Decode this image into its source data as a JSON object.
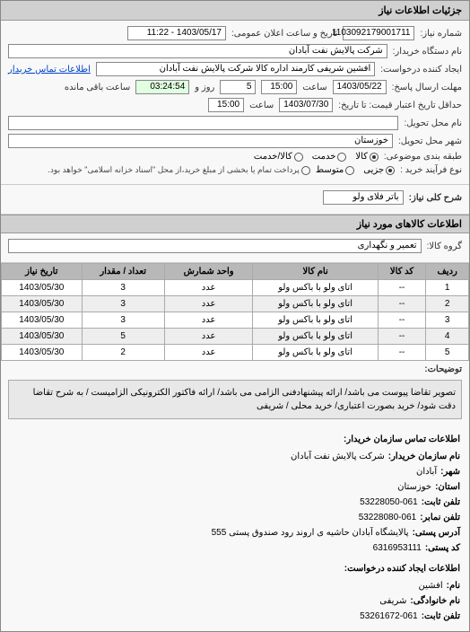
{
  "panel_title": "جزئیات اطلاعات نیاز",
  "fields": {
    "need_number_label": "شماره نیاز:",
    "need_number": "1103092179001711",
    "announce_label": "تاریخ و ساعت اعلان عمومی:",
    "announce_value": "1403/05/17 - 11:22",
    "org_label": "نام دستگاه خریدار:",
    "org_value": "شرکت پالایش نفت آبادان",
    "creator_label": "ایجاد کننده درخواست:",
    "creator_value": "افشین شریفی  کارمند اداره کالا   شرکت پالایش نفت آبادان",
    "contact_link": "اطلاعات تماس خریدار",
    "reply_deadline_label": "مهلت ارسال پاسخ:",
    "reply_to_label": "تا تاریخ:",
    "reply_date": "1403/05/22",
    "time_label": "ساعت",
    "reply_time": "15:00",
    "remaining_days": "5",
    "remaining_days_label": "روز و",
    "remaining_time": "03:24:54",
    "remaining_label": "ساعت باقی مانده",
    "validity_label": "حداقل تاریخ اعتبار قیمت: تا تاریخ:",
    "validity_date": "1403/07/30",
    "validity_time": "15:00",
    "delivery_type_label": "نام محل تحویل:",
    "delivery_city_label": "شهر محل تحویل:",
    "delivery_city": "خوزستان",
    "category_label": "طبقه بندی موضوعی:",
    "cat_goods": "کالا",
    "cat_service": "خدمت",
    "cat_both": "کالا/خدمت",
    "process_label": "نوع فرآیند خرید :",
    "proc_minor": "جزیی",
    "proc_medium": "متوسط",
    "payment_note": "پرداخت تمام یا بخشی از مبلغ خرید،از محل \"اسناد خزانه اسلامی\" خواهد بود.",
    "need_title_label": "شرح کلی نیاز:",
    "need_title": "باتر فلای ولو",
    "goods_info_header": "اطلاعات کالاهای مورد نیاز",
    "goods_group_label": "گروه کالا:",
    "goods_group": "تعمیر و نگهداری",
    "desc_label": "توضیحات:",
    "desc_text": "تصویر تقاضا پیوست می باشد/ ارائه پیشنهادفنی الزامی می باشد/ ارائه فاکتور الکترونیکی الزامیست / به شرح تقاضا دقت شود/ خرید بصورت اعتباری/ خرید محلی / شریفی"
  },
  "table": {
    "columns": [
      "ردیف",
      "کد کالا",
      "نام کالا",
      "واحد شمارش",
      "تعداد / مقدار",
      "تاریخ نیاز"
    ],
    "rows": [
      [
        "1",
        "--",
        "اتای ولو با باکس ولو",
        "عدد",
        "3",
        "1403/05/30"
      ],
      [
        "2",
        "--",
        "اتای ولو با باکس ولو",
        "عدد",
        "3",
        "1403/05/30"
      ],
      [
        "3",
        "--",
        "اتای ولو با باکس ولو",
        "عدد",
        "3",
        "1403/05/30"
      ],
      [
        "4",
        "--",
        "اتای ولو با باکس ولو",
        "عدد",
        "5",
        "1403/05/30"
      ],
      [
        "5",
        "--",
        "اتای ولو با باکس ولو",
        "عدد",
        "2",
        "1403/05/30"
      ]
    ]
  },
  "contact": {
    "buyer_heading": "اطلاعات تماس سازمان خریدار:",
    "buyer_org_k": "نام سازمان خریدار:",
    "buyer_org_v": "شرکت پالایش نفت آبادان",
    "city_k": "شهر:",
    "city_v": "آبادان",
    "province_k": "استان:",
    "province_v": "خوزستان",
    "phone_k": "تلفن ثابت:",
    "phone_v": "53228050-061",
    "fax_k": "تلفن نمابر:",
    "fax_v": "53228080-061",
    "address_k": "آدرس پستی:",
    "address_v": "پالایشگاه آبادان حاشیه ی اروند رود صندوق پستی 555",
    "postal_k": "کد پستی:",
    "postal_v": "6316953111",
    "requester_heading": "اطلاعات ایجاد کننده درخواست:",
    "name_k": "نام:",
    "name_v": "افشین",
    "family_k": "نام خانوادگی:",
    "family_v": "شریفی",
    "req_phone_k": "تلفن ثابت:",
    "req_phone_v": "53261672-061"
  },
  "colors": {
    "header_bg": "#d0d0d0",
    "border": "#888888",
    "table_header_bg": "#b8b8b8",
    "row_even": "#eeeeee",
    "link": "#0044cc"
  }
}
